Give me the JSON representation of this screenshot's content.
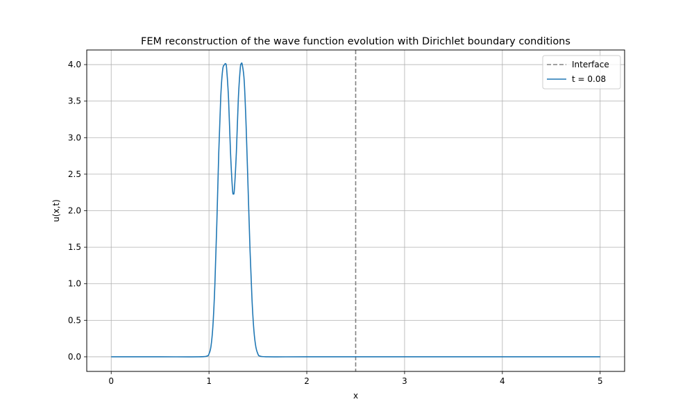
{
  "chart_data": {
    "type": "line",
    "title": "FEM reconstruction of the wave function evolution with Dirichlet boundary conditions",
    "xlabel": "x",
    "ylabel": "u(x,t)",
    "xlim": [
      -0.25,
      5.25
    ],
    "ylim": [
      -0.2,
      4.2
    ],
    "xticks": [
      0,
      1,
      2,
      3,
      4,
      5
    ],
    "xtick_labels": [
      "0",
      "1",
      "2",
      "3",
      "4",
      "5"
    ],
    "yticks": [
      0.0,
      0.5,
      1.0,
      1.5,
      2.0,
      2.5,
      3.0,
      3.5,
      4.0
    ],
    "ytick_labels": [
      "0.0",
      "0.5",
      "1.0",
      "1.5",
      "2.0",
      "2.5",
      "3.0",
      "3.5",
      "4.0"
    ],
    "grid": true,
    "legend_position": "top-right",
    "vlines": [
      {
        "name": "Interface",
        "x": 2.5,
        "color": "#808080",
        "style": "dashed"
      }
    ],
    "series": [
      {
        "name": "t = 0.08",
        "color": "#1f77b4",
        "x": [
          0.0,
          0.5,
          0.9,
          0.98,
          1.0,
          1.02,
          1.04,
          1.06,
          1.08,
          1.1,
          1.12,
          1.14,
          1.16,
          1.17,
          1.18,
          1.2,
          1.22,
          1.24,
          1.25,
          1.26,
          1.28,
          1.3,
          1.32,
          1.33,
          1.34,
          1.36,
          1.38,
          1.4,
          1.42,
          1.44,
          1.46,
          1.48,
          1.5,
          1.52,
          1.6,
          2.0,
          3.0,
          4.0,
          5.0
        ],
        "y": [
          0.0,
          0.0,
          0.0,
          0.01,
          0.04,
          0.14,
          0.42,
          0.98,
          1.82,
          2.8,
          3.55,
          3.93,
          4.0,
          4.01,
          3.95,
          3.53,
          2.8,
          2.3,
          2.23,
          2.3,
          2.8,
          3.53,
          3.95,
          4.01,
          4.0,
          3.78,
          3.15,
          2.3,
          1.45,
          0.78,
          0.35,
          0.13,
          0.04,
          0.01,
          0.0,
          0.0,
          0.0,
          0.0,
          0.0
        ]
      }
    ]
  }
}
